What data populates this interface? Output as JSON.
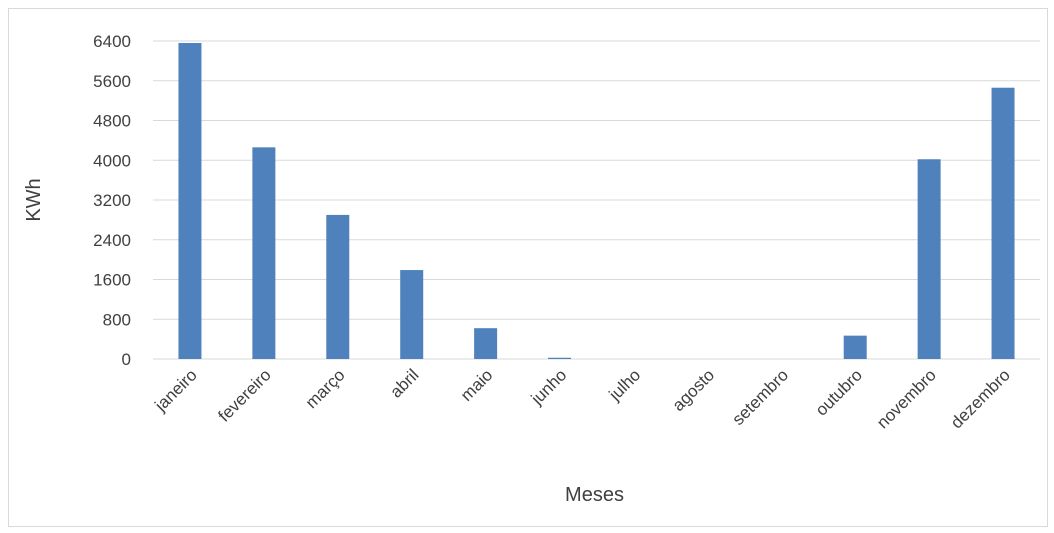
{
  "chart_data": {
    "type": "bar",
    "title": "",
    "xlabel": "Meses",
    "ylabel": "KWh",
    "categories": [
      "janeiro",
      "fevereiro",
      "março",
      "abril",
      "maio",
      "junho",
      "julho",
      "agosto",
      "setembro",
      "outubro",
      "novembro",
      "dezembro"
    ],
    "series": [
      {
        "values": [
          6360,
          4260,
          2900,
          1790,
          620,
          25,
          0,
          0,
          0,
          470,
          4020,
          5460
        ]
      }
    ],
    "ylim": [
      0,
      6400
    ],
    "yticks": [
      0,
      800,
      1600,
      2400,
      3200,
      4000,
      4800,
      5600,
      6400
    ],
    "grid": true,
    "legend": "none",
    "colors": {
      "bar": "#4f81bd",
      "grid": "#d9d9d9",
      "text": "#404040"
    }
  }
}
